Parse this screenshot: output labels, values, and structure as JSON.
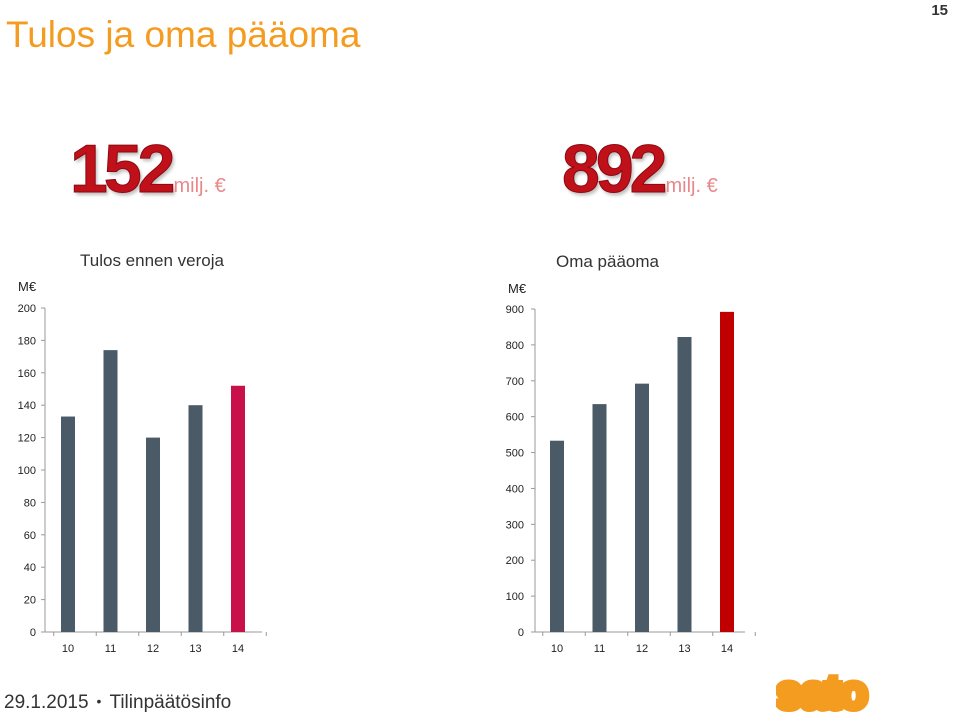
{
  "slide": {
    "title": "Tulos ja oma pääoma",
    "page_number": "15",
    "footer_date": "29.1.2015",
    "footer_bullet": "•",
    "footer_text": "Tilinpäätösinfo",
    "logo_text": "sato",
    "logo_color": "#f39c1f"
  },
  "kpis": [
    {
      "value": "152",
      "unit": "milj. €"
    },
    {
      "value": "892",
      "unit": "milj. €"
    }
  ],
  "chart_data": [
    {
      "type": "bar",
      "title": "Tulos ennen veroja",
      "ylabel": "M€",
      "categories": [
        "10",
        "11",
        "12",
        "13",
        "14"
      ],
      "values": [
        133,
        174,
        120,
        140,
        152
      ],
      "ylim": [
        0,
        200
      ],
      "yticks": [
        "0",
        "20",
        "40",
        "60",
        "80",
        "100",
        "120",
        "140",
        "160",
        "180",
        "200"
      ],
      "bar_colors": [
        "#4a5a66",
        "#4a5a66",
        "#4a5a66",
        "#4a5a66",
        "#c8104a"
      ],
      "grid": false
    },
    {
      "type": "bar",
      "title": "Oma pääoma",
      "ylabel": "M€",
      "categories": [
        "10",
        "11",
        "12",
        "13",
        "14"
      ],
      "values": [
        533,
        635,
        692,
        822,
        892
      ],
      "ylim": [
        0,
        900
      ],
      "yticks": [
        "0",
        "100",
        "200",
        "300",
        "400",
        "500",
        "600",
        "700",
        "800",
        "900"
      ],
      "bar_colors": [
        "#4a5a66",
        "#4a5a66",
        "#4a5a66",
        "#4a5a66",
        "#c00000"
      ],
      "grid": false
    }
  ]
}
